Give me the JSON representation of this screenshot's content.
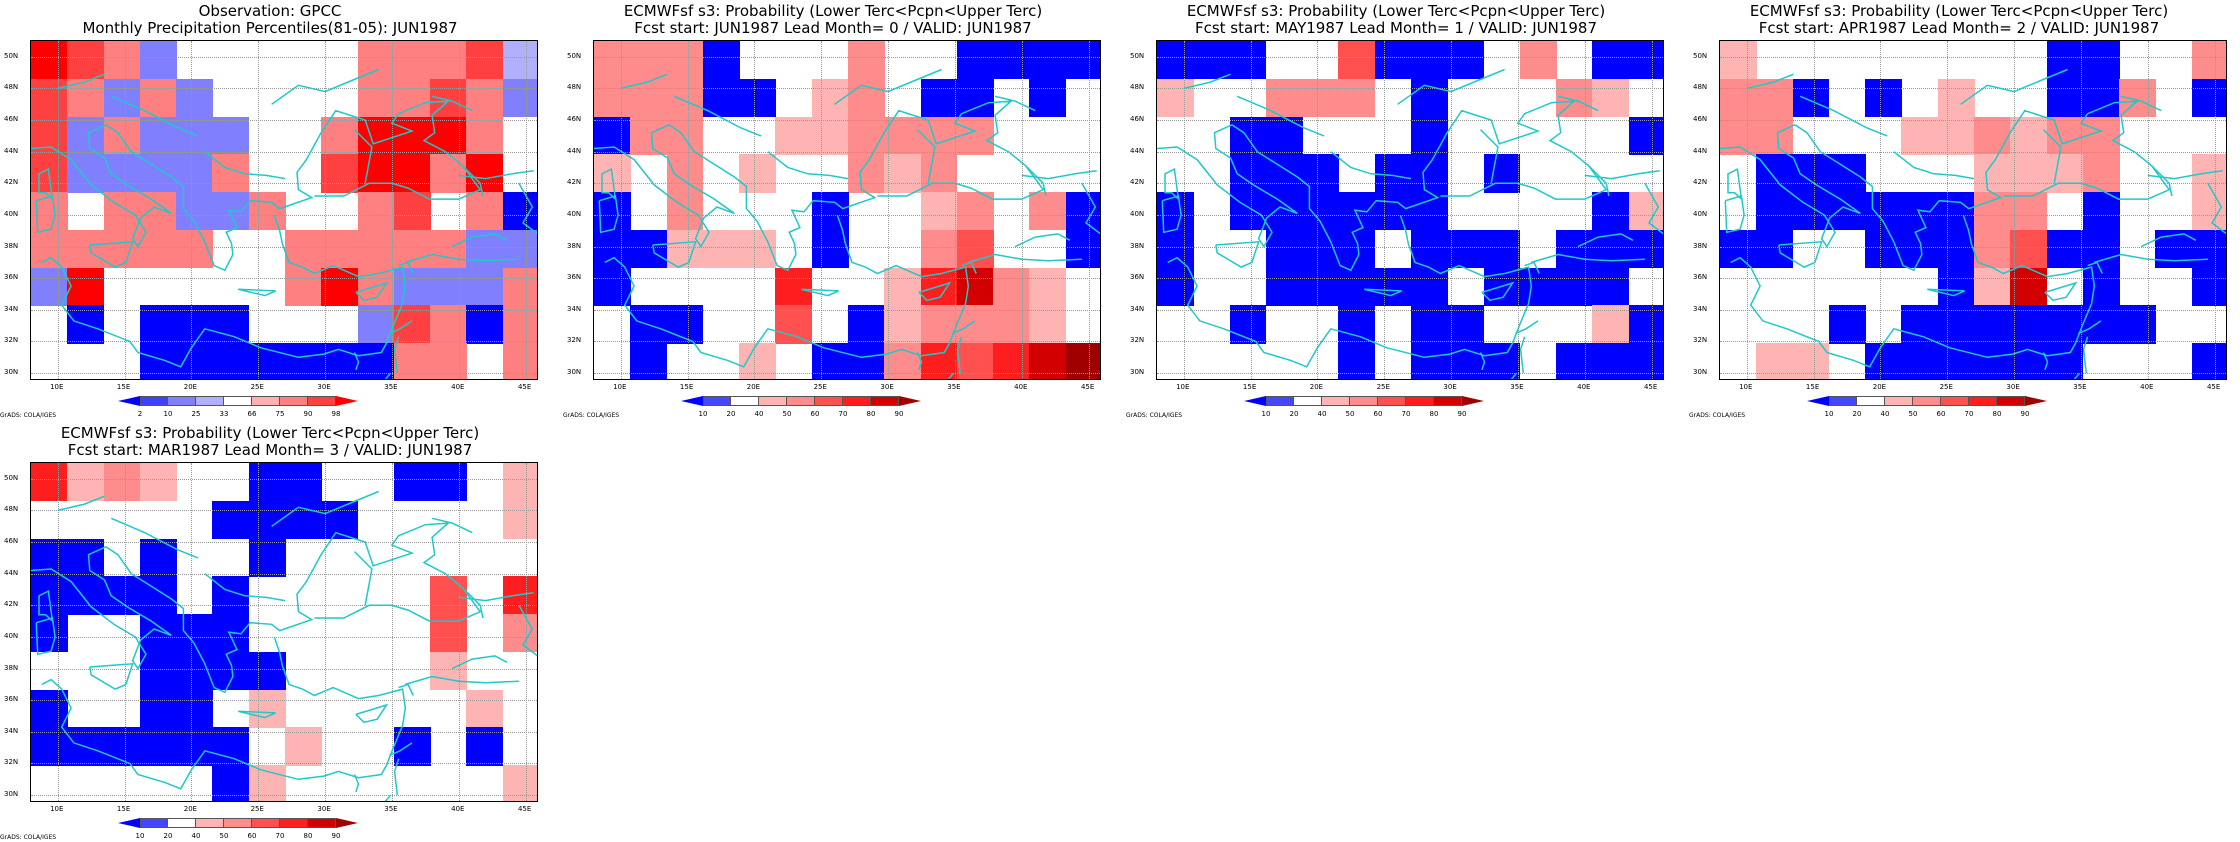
{
  "credit": "GrADS: COLA/IGES",
  "lat_labels": [
    "50N",
    "48N",
    "46N",
    "44N",
    "42N",
    "40N",
    "38N",
    "36N",
    "34N",
    "32N",
    "30N"
  ],
  "lon_labels": [
    "10E",
    "15E",
    "20E",
    "25E",
    "30E",
    "35E",
    "40E",
    "45E"
  ],
  "map_extent": {
    "lon": [
      8,
      46
    ],
    "lat": [
      29.5,
      51
    ]
  },
  "grid_size": {
    "rows": 9,
    "cols": 14
  },
  "legend_obs": {
    "labels": [
      "2",
      "10",
      "25",
      "33",
      "66",
      "75",
      "90",
      "98"
    ],
    "colors": [
      "#0000ff",
      "#4040ff",
      "#8080ff",
      "#b0b0ff",
      "#ffffff",
      "#ffb0b0",
      "#ff8080",
      "#ff4040",
      "#ff0000"
    ]
  },
  "legend_prob": {
    "labels": [
      "10",
      "20",
      "40",
      "50",
      "60",
      "70",
      "80",
      "90"
    ],
    "colors": [
      "#0000ff",
      "#4646ff",
      "#ffffff",
      "#ffb4b4",
      "#ff8c8c",
      "#ff5050",
      "#ff1e1e",
      "#d20000",
      "#a00000"
    ]
  },
  "chart_data": [
    {
      "type": "heatmap",
      "title_line1": "Observation: GPCC",
      "title_line2": "Monthly Precipitation Percentiles(81-05): JUN1987",
      "legend": "obs",
      "cells": [
        [
          8,
          7,
          6,
          2,
          4,
          4,
          4,
          4,
          4,
          6,
          6,
          6,
          7,
          3
        ],
        [
          7,
          6,
          2,
          6,
          2,
          4,
          4,
          4,
          4,
          6,
          6,
          7,
          6,
          2
        ],
        [
          7,
          2,
          6,
          2,
          2,
          2,
          4,
          4,
          6,
          8,
          8,
          8,
          6,
          4
        ],
        [
          7,
          2,
          2,
          2,
          2,
          6,
          4,
          4,
          7,
          8,
          8,
          6,
          8,
          4
        ],
        [
          6,
          4,
          6,
          6,
          2,
          2,
          6,
          4,
          4,
          6,
          7,
          4,
          6,
          0
        ],
        [
          6,
          6,
          6,
          6,
          6,
          4,
          4,
          6,
          6,
          6,
          6,
          6,
          2,
          2
        ],
        [
          2,
          8,
          4,
          4,
          4,
          4,
          4,
          6,
          8,
          6,
          2,
          2,
          2,
          6
        ],
        [
          4,
          0,
          4,
          0,
          0,
          0,
          4,
          4,
          4,
          2,
          7,
          6,
          0,
          6
        ],
        [
          4,
          4,
          4,
          0,
          0,
          0,
          0,
          0,
          0,
          0,
          6,
          6,
          4,
          6
        ]
      ]
    },
    {
      "type": "heatmap",
      "title_line1": "ECMWFsf s3: Probability (Lower Terc<Pcpn<Upper Terc)",
      "title_line2": "Fcst start: JUN1987  Lead Month= 0 / VALID: JUN1987",
      "legend": "prob",
      "cells": [
        [
          4,
          4,
          4,
          0,
          2,
          2,
          2,
          4,
          2,
          2,
          0,
          0,
          0,
          0
        ],
        [
          4,
          4,
          4,
          0,
          0,
          2,
          3,
          4,
          2,
          0,
          0,
          2,
          0,
          2
        ],
        [
          0,
          4,
          4,
          2,
          2,
          3,
          3,
          4,
          4,
          4,
          4,
          2,
          2,
          2
        ],
        [
          3,
          2,
          4,
          2,
          3,
          2,
          2,
          4,
          3,
          4,
          2,
          2,
          2,
          2
        ],
        [
          0,
          2,
          4,
          2,
          2,
          2,
          0,
          2,
          2,
          3,
          4,
          2,
          4,
          0
        ],
        [
          0,
          0,
          3,
          3,
          3,
          2,
          0,
          2,
          2,
          4,
          5,
          2,
          2,
          0
        ],
        [
          0,
          2,
          2,
          2,
          2,
          6,
          2,
          2,
          3,
          6,
          7,
          4,
          3,
          2
        ],
        [
          2,
          0,
          0,
          2,
          2,
          5,
          2,
          0,
          3,
          4,
          4,
          4,
          3,
          2
        ],
        [
          2,
          0,
          2,
          2,
          3,
          2,
          0,
          0,
          4,
          6,
          5,
          6,
          7,
          8
        ]
      ]
    },
    {
      "type": "heatmap",
      "title_line1": "ECMWFsf s3: Probability (Lower Terc<Pcpn<Upper Terc)",
      "title_line2": "Fcst start: MAY1987  Lead Month= 1 / VALID: JUN1987",
      "legend": "prob",
      "cells": [
        [
          0,
          0,
          0,
          2,
          2,
          5,
          0,
          0,
          0,
          2,
          4,
          2,
          0,
          0
        ],
        [
          3,
          2,
          2,
          4,
          4,
          4,
          2,
          0,
          2,
          2,
          2,
          4,
          3,
          2
        ],
        [
          2,
          2,
          0,
          0,
          2,
          2,
          2,
          0,
          2,
          2,
          2,
          2,
          2,
          0
        ],
        [
          2,
          2,
          0,
          0,
          0,
          2,
          0,
          0,
          2,
          0,
          2,
          2,
          2,
          2
        ],
        [
          0,
          2,
          0,
          0,
          0,
          0,
          0,
          0,
          2,
          2,
          2,
          2,
          0,
          3
        ],
        [
          0,
          2,
          2,
          0,
          0,
          0,
          2,
          0,
          0,
          0,
          2,
          0,
          0,
          0
        ],
        [
          0,
          2,
          2,
          0,
          0,
          0,
          0,
          0,
          2,
          0,
          0,
          0,
          0,
          2
        ],
        [
          2,
          2,
          0,
          2,
          2,
          0,
          2,
          0,
          0,
          2,
          2,
          2,
          3,
          0
        ],
        [
          2,
          2,
          2,
          2,
          2,
          0,
          2,
          0,
          0,
          0,
          2,
          0,
          0,
          0
        ]
      ]
    },
    {
      "type": "heatmap",
      "title_line1": "ECMWFsf s3: Probability (Lower Terc<Pcpn<Upper Terc)",
      "title_line2": "Fcst start: APR1987  Lead Month= 2 / VALID: JUN1987",
      "legend": "prob",
      "cells": [
        [
          3,
          2,
          2,
          2,
          2,
          2,
          2,
          2,
          2,
          0,
          0,
          2,
          2,
          4
        ],
        [
          4,
          4,
          0,
          2,
          0,
          2,
          3,
          2,
          2,
          0,
          0,
          4,
          2,
          0
        ],
        [
          4,
          4,
          2,
          2,
          2,
          3,
          3,
          4,
          3,
          4,
          4,
          2,
          2,
          2
        ],
        [
          2,
          0,
          0,
          0,
          2,
          2,
          2,
          3,
          3,
          3,
          4,
          2,
          2,
          3
        ],
        [
          2,
          0,
          0,
          0,
          0,
          0,
          0,
          4,
          4,
          2,
          0,
          2,
          2,
          3
        ],
        [
          0,
          0,
          2,
          2,
          0,
          0,
          0,
          4,
          5,
          0,
          0,
          2,
          0,
          0
        ],
        [
          2,
          2,
          2,
          2,
          2,
          2,
          0,
          3,
          7,
          2,
          0,
          2,
          2,
          0
        ],
        [
          2,
          2,
          2,
          0,
          2,
          0,
          0,
          0,
          0,
          0,
          0,
          0,
          2,
          2
        ],
        [
          2,
          3,
          3,
          2,
          0,
          0,
          0,
          0,
          0,
          0,
          2,
          2,
          2,
          0
        ]
      ]
    },
    {
      "type": "heatmap",
      "title_line1": "ECMWFsf s3: Probability (Lower Terc<Pcpn<Upper Terc)",
      "title_line2": "Fcst start: MAR1987  Lead Month= 3 / VALID: JUN1987",
      "legend": "prob",
      "cells": [
        [
          6,
          3,
          4,
          3,
          2,
          2,
          0,
          0,
          2,
          2,
          0,
          0,
          2,
          3
        ],
        [
          2,
          2,
          2,
          2,
          2,
          0,
          0,
          0,
          0,
          2,
          2,
          2,
          2,
          3
        ],
        [
          0,
          0,
          2,
          0,
          2,
          2,
          0,
          2,
          2,
          2,
          2,
          2,
          2,
          2
        ],
        [
          0,
          0,
          0,
          0,
          2,
          0,
          2,
          2,
          2,
          2,
          2,
          5,
          2,
          6
        ],
        [
          0,
          2,
          2,
          0,
          0,
          0,
          2,
          2,
          2,
          2,
          2,
          5,
          2,
          4
        ],
        [
          2,
          2,
          2,
          0,
          0,
          0,
          0,
          2,
          2,
          2,
          2,
          3,
          2,
          2
        ],
        [
          0,
          2,
          2,
          0,
          0,
          2,
          3,
          2,
          2,
          2,
          2,
          2,
          3,
          2
        ],
        [
          0,
          0,
          0,
          0,
          0,
          0,
          2,
          3,
          2,
          2,
          0,
          2,
          0,
          2
        ],
        [
          2,
          2,
          2,
          2,
          2,
          0,
          3,
          2,
          2,
          2,
          2,
          2,
          2,
          3
        ]
      ]
    }
  ]
}
